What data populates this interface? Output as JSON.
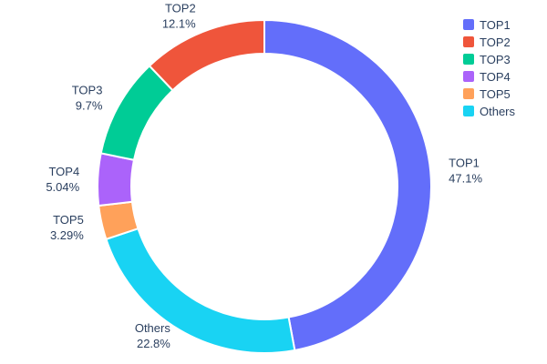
{
  "chart_data": {
    "type": "pie",
    "subtype": "donut",
    "hole": 0.8,
    "title": "",
    "labels": [
      "TOP1",
      "TOP2",
      "TOP3",
      "TOP4",
      "TOP5",
      "Others"
    ],
    "values": [
      47.1,
      12.1,
      9.7,
      5.04,
      3.29,
      22.8
    ],
    "percent_labels": [
      "47.1%",
      "12.1%",
      "9.7%",
      "5.04%",
      "3.29%",
      "22.8%"
    ],
    "colors": [
      "#636EFA",
      "#EF553B",
      "#00CC96",
      "#AB63FA",
      "#FFA15A",
      "#19D3F3"
    ],
    "display_order_clockwise": [
      "TOP1",
      "Others",
      "TOP5",
      "TOP4",
      "TOP3",
      "TOP2"
    ],
    "start_angle": "12-oclock",
    "direction": "clockwise",
    "legend": {
      "position": "top-right",
      "entries": [
        "TOP1",
        "TOP2",
        "TOP3",
        "TOP4",
        "TOP5",
        "Others"
      ]
    },
    "text_color": "#2a3f5f",
    "background_color": "#ffffff",
    "slice_separator_color": "#ffffff"
  }
}
